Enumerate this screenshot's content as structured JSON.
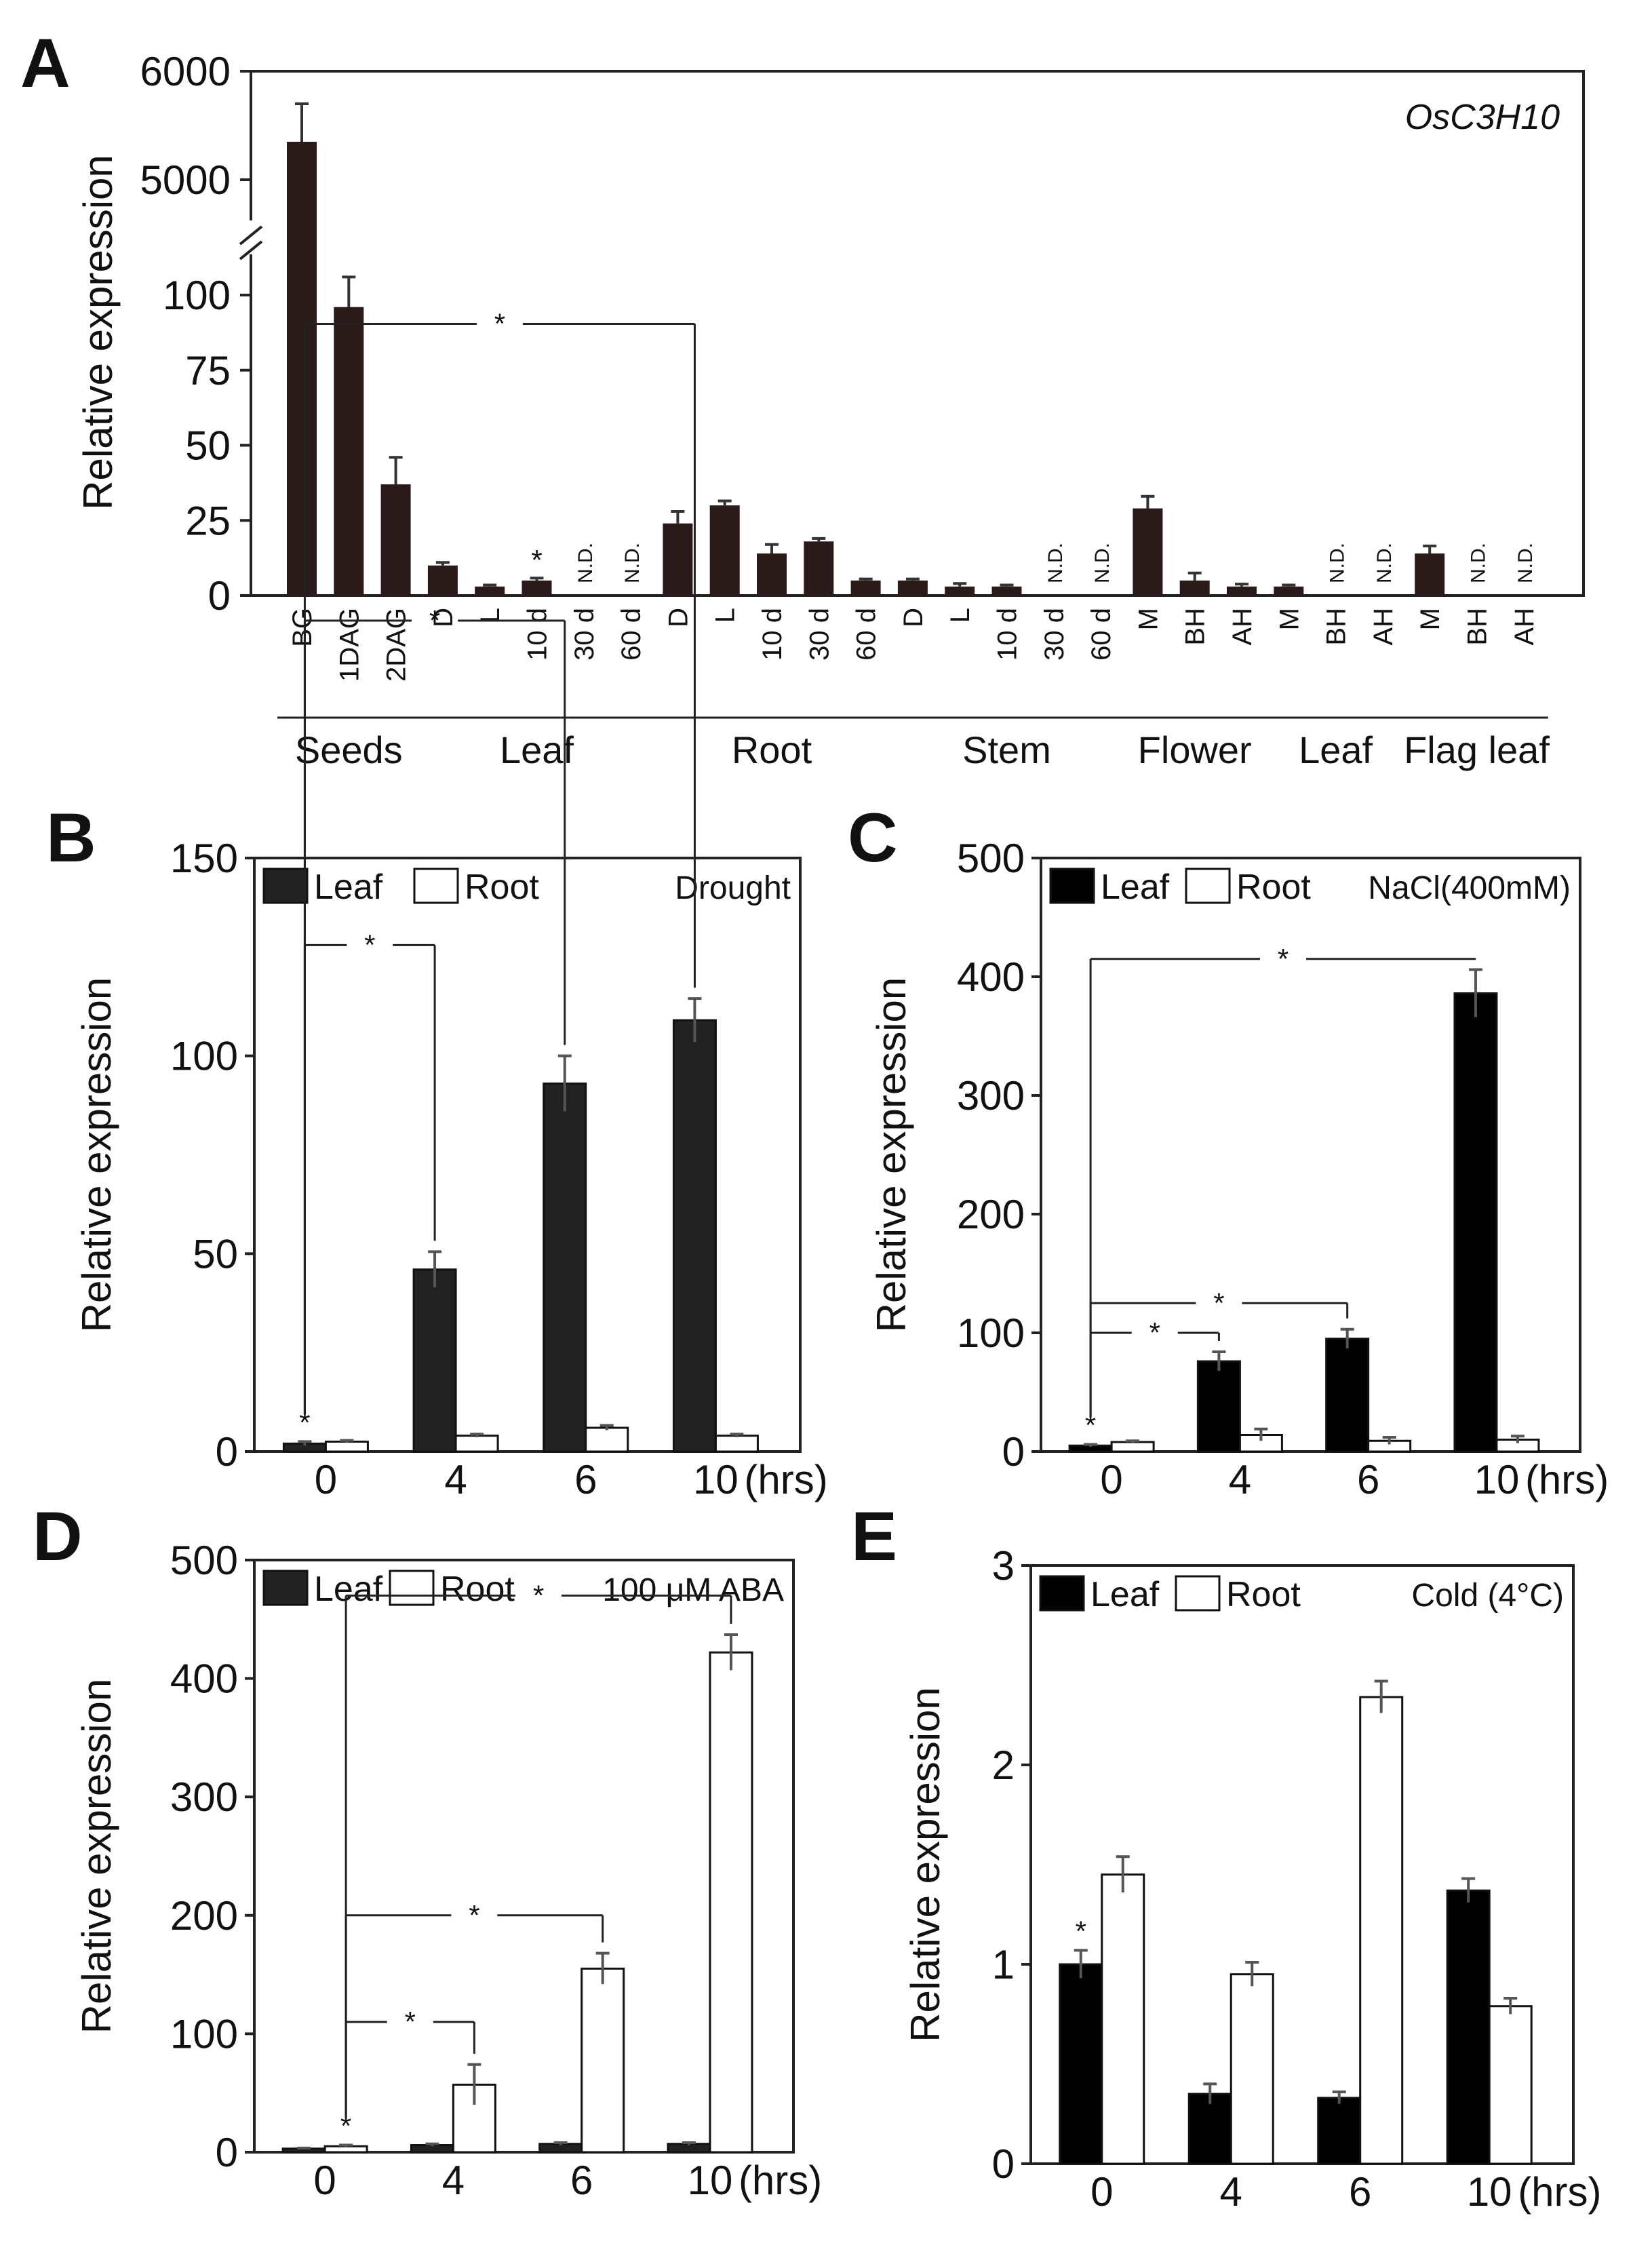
{
  "chart_data": [
    {
      "panel": "A",
      "type": "bar",
      "annotation": "OsC3H10",
      "ylabel": "Relative expression",
      "yticks": [
        "0",
        "25",
        "50",
        "75",
        "100",
        "5000",
        "6000"
      ],
      "broken_axis": {
        "lower_range": [
          0,
          110
        ],
        "upper_range": [
          4700,
          6000
        ]
      },
      "nd_label": "N.D.",
      "star": "*",
      "groups": [
        {
          "label": "Seeds",
          "categories": [
            {
              "cat": "BG",
              "value": 5350,
              "err": 350
            },
            {
              "cat": "1DAG",
              "value": 96,
              "err": 10
            },
            {
              "cat": "2DAG",
              "value": 37,
              "err": 9
            }
          ]
        },
        {
          "label": "Leaf",
          "categories": [
            {
              "cat": "D",
              "value": 10,
              "err": 1
            },
            {
              "cat": "L",
              "value": 3,
              "err": 0.5
            },
            {
              "cat": "10 d",
              "value": 5,
              "err": 0.8,
              "star": true
            },
            {
              "cat": "30 d",
              "value": null
            },
            {
              "cat": "60 d",
              "value": null
            }
          ]
        },
        {
          "label": "Root",
          "categories": [
            {
              "cat": "D",
              "value": 24,
              "err": 4
            },
            {
              "cat": "L",
              "value": 30,
              "err": 1.5
            },
            {
              "cat": "10 d",
              "value": 14,
              "err": 3
            },
            {
              "cat": "30 d",
              "value": 18,
              "err": 1
            },
            {
              "cat": "60 d",
              "value": 5,
              "err": 0.5
            }
          ]
        },
        {
          "label": "Stem",
          "categories": [
            {
              "cat": "D",
              "value": 5,
              "err": 0.5
            },
            {
              "cat": "L",
              "value": 3,
              "err": 1
            },
            {
              "cat": "10 d",
              "value": 3,
              "err": 0.5
            },
            {
              "cat": "30 d",
              "value": null
            },
            {
              "cat": "60 d",
              "value": null
            }
          ]
        },
        {
          "label": "Flower",
          "categories": [
            {
              "cat": "M",
              "value": 29,
              "err": 4
            },
            {
              "cat": "BH",
              "value": 5,
              "err": 2.5
            },
            {
              "cat": "AH",
              "value": 3,
              "err": 0.8
            }
          ]
        },
        {
          "label": "Leaf",
          "categories": [
            {
              "cat": "M",
              "value": 3,
              "err": 0.5
            },
            {
              "cat": "BH",
              "value": null
            },
            {
              "cat": "AH",
              "value": null
            }
          ]
        },
        {
          "label": "Flag leaf",
          "categories": [
            {
              "cat": "M",
              "value": 14,
              "err": 2.5
            },
            {
              "cat": "BH",
              "value": null
            },
            {
              "cat": "AH",
              "value": null
            }
          ]
        }
      ]
    },
    {
      "panel": "B",
      "type": "bar",
      "condition": "Drought",
      "ylabel": "Relative expression",
      "ylim": [
        0,
        150
      ],
      "yticks": [
        0,
        50,
        100,
        150
      ],
      "xlabel": "(hrs)",
      "categories": [
        "0",
        "4",
        "6",
        "10"
      ],
      "legend": [
        "Leaf",
        "Root"
      ],
      "series": [
        {
          "name": "Leaf",
          "fill": "#222222",
          "values": [
            2,
            46,
            93,
            109
          ],
          "err": [
            0.5,
            4.5,
            7,
            5.5
          ]
        },
        {
          "name": "Root",
          "fill": "#ffffff",
          "values": [
            2.5,
            4,
            6,
            4
          ],
          "err": [
            0.3,
            0.4,
            0.6,
            0.4
          ]
        }
      ],
      "comparisons": [
        {
          "from": 0,
          "to": 1,
          "y": 128,
          "label": "*"
        },
        {
          "from": 0,
          "to": 2,
          "y": 210,
          "label": "*"
        },
        {
          "from": 0,
          "to": 3,
          "y": 285,
          "label": "*"
        }
      ],
      "base_star": "*"
    },
    {
      "panel": "C",
      "type": "bar",
      "condition": "NaCl(400mM)",
      "ylabel": "Relative expression",
      "ylim": [
        0,
        500
      ],
      "yticks": [
        0,
        100,
        200,
        300,
        400,
        500
      ],
      "xlabel": "(hrs)",
      "categories": [
        "0",
        "4",
        "6",
        "10"
      ],
      "legend": [
        "Leaf",
        "Root"
      ],
      "series": [
        {
          "name": "Leaf",
          "fill": "#000000",
          "values": [
            5,
            76,
            95,
            386
          ],
          "err": [
            1,
            8,
            8,
            20
          ]
        },
        {
          "name": "Root",
          "fill": "#ffffff",
          "values": [
            8,
            14,
            9,
            10
          ],
          "err": [
            1,
            5,
            3,
            3
          ]
        }
      ],
      "comparisons": [
        {
          "from": 0,
          "to": 1,
          "y": 100,
          "label": "*"
        },
        {
          "from": 0,
          "to": 2,
          "y": 125,
          "label": "*"
        },
        {
          "from": 0,
          "to": 3,
          "y": 415,
          "label": "*"
        }
      ],
      "base_star": "*"
    },
    {
      "panel": "D",
      "type": "bar",
      "condition": "100 μM ABA",
      "ylabel": "Relative expression",
      "ylim": [
        0,
        500
      ],
      "yticks": [
        0,
        100,
        200,
        300,
        400,
        500
      ],
      "xlabel": "(hrs)",
      "categories": [
        "0",
        "4",
        "6",
        "10"
      ],
      "legend": [
        "Leaf",
        "Root"
      ],
      "series": [
        {
          "name": "Leaf",
          "fill": "#222222",
          "values": [
            3,
            6,
            7,
            7
          ],
          "err": [
            0.5,
            1,
            1,
            1
          ]
        },
        {
          "name": "Root",
          "fill": "#ffffff",
          "values": [
            5,
            57,
            155,
            422
          ],
          "err": [
            1,
            17,
            13,
            15
          ]
        }
      ],
      "comparisons": [
        {
          "from": 0,
          "to": 1,
          "y": 110,
          "label": "*"
        },
        {
          "from": 0,
          "to": 2,
          "y": 200,
          "label": "*"
        },
        {
          "from": 0,
          "to": 3,
          "y": 470,
          "label": "*"
        }
      ],
      "base_star": "*"
    },
    {
      "panel": "E",
      "type": "bar",
      "condition": "Cold (4°C)",
      "ylabel": "Relative expression",
      "ylim": [
        0,
        3
      ],
      "yticks": [
        0,
        1,
        2,
        3
      ],
      "xlabel": "(hrs)",
      "categories": [
        "0",
        "4",
        "6",
        "10"
      ],
      "legend": [
        "Leaf",
        "Root"
      ],
      "series": [
        {
          "name": "Leaf",
          "fill": "#000000",
          "values": [
            1.0,
            0.35,
            0.33,
            1.37
          ],
          "err": [
            0.07,
            0.05,
            0.03,
            0.06
          ]
        },
        {
          "name": "Root",
          "fill": "#ffffff",
          "values": [
            1.45,
            0.95,
            2.34,
            0.79
          ],
          "err": [
            0.09,
            0.06,
            0.08,
            0.04
          ]
        }
      ],
      "comparisons": [],
      "base_star": "*"
    }
  ]
}
